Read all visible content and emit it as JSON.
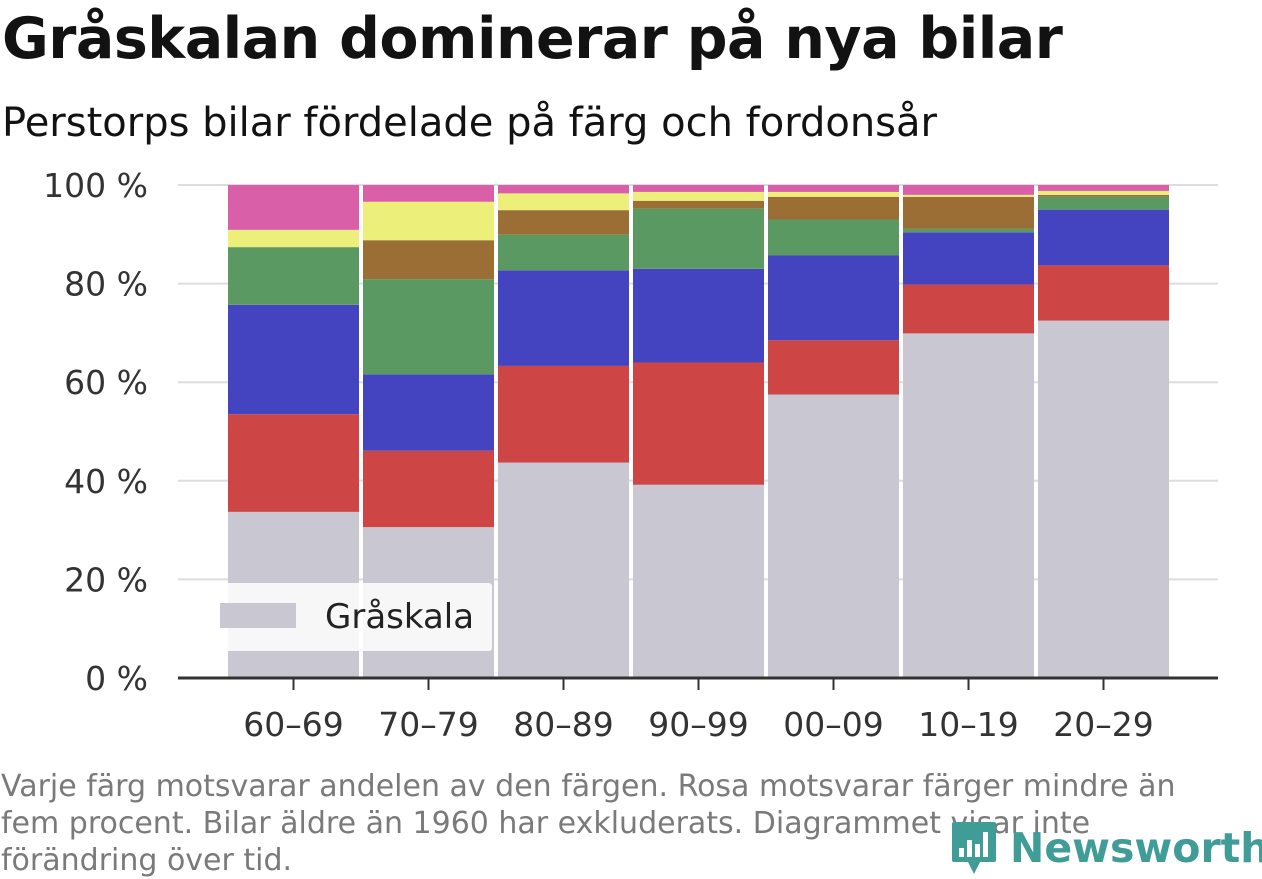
{
  "title": "Gråskalan dominerar på nya bilar",
  "subtitle": "Perstorps bilar fördelade på färg och fordonsår",
  "note": "Varje färg motsvarar andelen av den färgen. Rosa motsvarar färger mindre än fem procent. Bilar äldre än 1960 har exkluderats. Diagrammet visar inte förändring över tid.",
  "brand": {
    "name": "Newsworthy",
    "color": "#3f9c97"
  },
  "legend": {
    "label": "Gråskala",
    "position": "bottom-left"
  },
  "chart_data": {
    "type": "bar",
    "stacked": true,
    "categories": [
      "60–69",
      "70–79",
      "80–89",
      "90–99",
      "00–09",
      "10–19",
      "20–29"
    ],
    "ylim": [
      0,
      100
    ],
    "yticks": [
      0,
      20,
      40,
      60,
      80,
      100
    ],
    "ytick_labels": [
      "0 %",
      "20 %",
      "40 %",
      "60 %",
      "80 %",
      "100 %"
    ],
    "grid": true,
    "series": [
      {
        "name": "Gråskala",
        "color": "#c8c7d2",
        "values": [
          33.7,
          30.6,
          43.7,
          39.2,
          57.5,
          69.9,
          72.5
        ]
      },
      {
        "color": "#cd4545",
        "values": [
          19.8,
          15.5,
          19.6,
          24.8,
          11.0,
          9.9,
          11.2
        ]
      },
      {
        "color": "#4444c0",
        "values": [
          22.2,
          15.5,
          19.4,
          19.0,
          17.2,
          10.6,
          11.3
        ]
      },
      {
        "color": "#5a9a62",
        "values": [
          11.7,
          19.3,
          7.2,
          12.2,
          7.3,
          0.7,
          2.6
        ]
      },
      {
        "color": "#9a6e35",
        "values": [
          0.0,
          7.9,
          5.0,
          1.6,
          4.6,
          6.5,
          0.4
        ]
      },
      {
        "color": "#ecf07a",
        "values": [
          3.5,
          7.8,
          3.4,
          1.8,
          1.0,
          0.4,
          0.8
        ]
      },
      {
        "color": "#d95fa9",
        "values": [
          9.1,
          3.4,
          1.7,
          1.4,
          1.4,
          2.0,
          1.2
        ]
      }
    ]
  }
}
